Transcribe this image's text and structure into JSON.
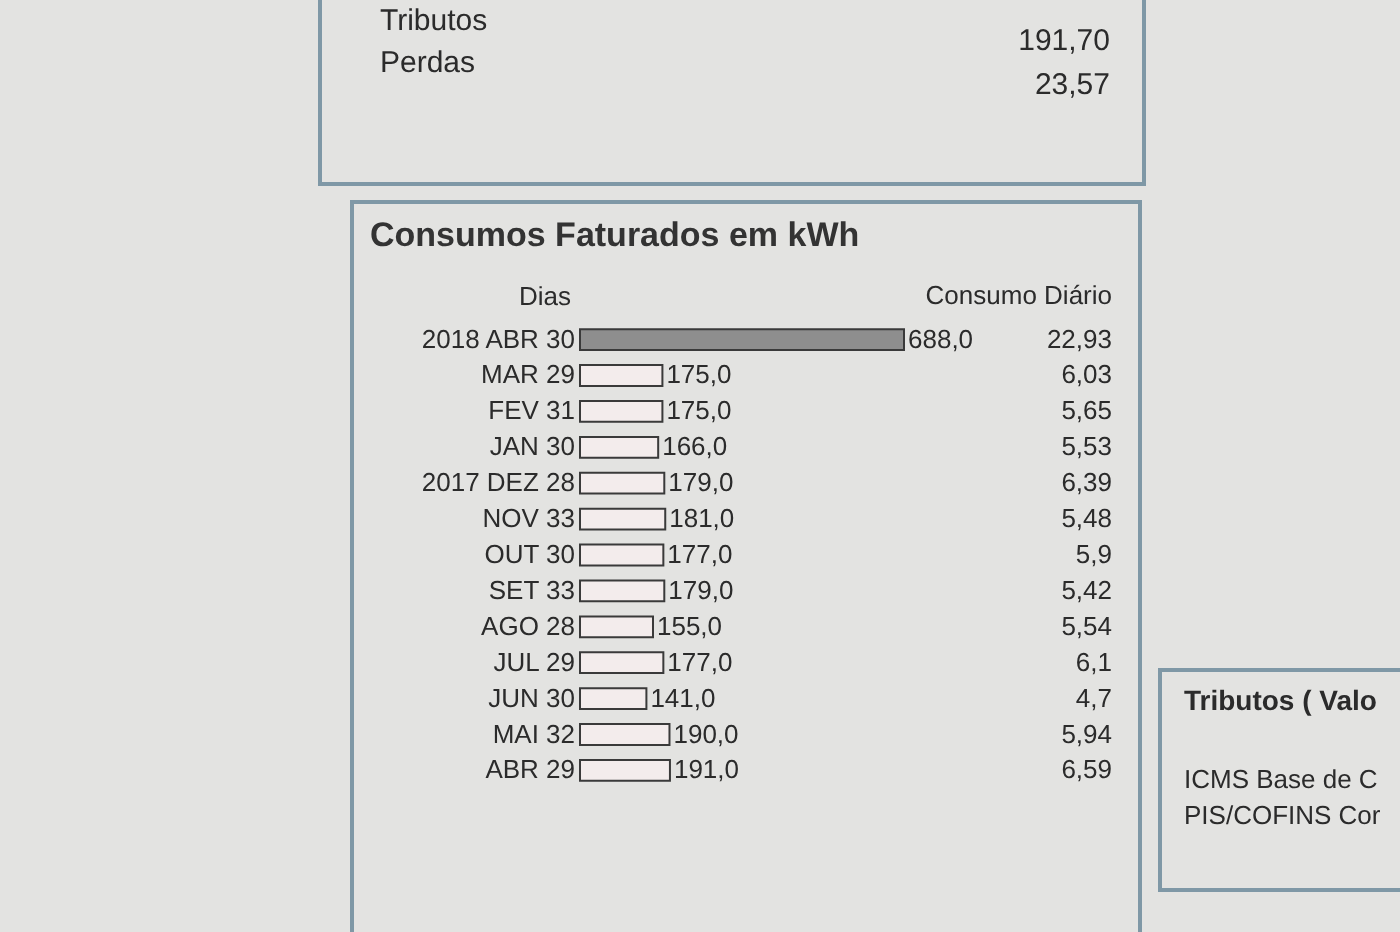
{
  "chart_data": {
    "type": "bar",
    "orientation": "horizontal",
    "title": "Consumos Faturados em kWh",
    "ylabel": "Dias",
    "categories": [
      "2018 ABR 30",
      "MAR 29",
      "FEV 31",
      "JAN 30",
      "2017 DEZ 28",
      "NOV 33",
      "OUT 30",
      "SET 33",
      "AGO 28",
      "JUL 29",
      "JUN 30",
      "MAI 32",
      "ABR 29"
    ],
    "values": [
      688,
      175,
      175,
      166,
      179,
      181,
      177,
      179,
      155,
      177,
      141,
      190,
      191
    ],
    "colors": [
      "#8e8e8e",
      "#f3ecec",
      "#f3ecec",
      "#f3ecec",
      "#f3ecec",
      "#f3ecec",
      "#f3ecec",
      "#f3ecec",
      "#f3ecec",
      "#f3ecec",
      "#f3ecec",
      "#f3ecec",
      "#f3ecec"
    ],
    "value_labels": [
      "688,0",
      "175,0",
      "175,0",
      "166,0",
      "179,0",
      "181,0",
      "177,0",
      "179,0",
      "155,0",
      "177,0",
      "141,0",
      "190,0",
      "191,0"
    ],
    "annotations": [
      "Consumo Diário",
      "22,93",
      "6,03",
      "5,65",
      "5,53",
      "6,39",
      "5,48",
      "5,9",
      "5,42",
      "5,54",
      "6,1",
      "4,7",
      "5,94",
      "6,59",
      "Tributos",
      "191,70",
      "Perdas",
      "23,57",
      "Tributos  ( Valo",
      "ICMS Base de C",
      "PIS/COFINS Cor"
    ]
  }
}
